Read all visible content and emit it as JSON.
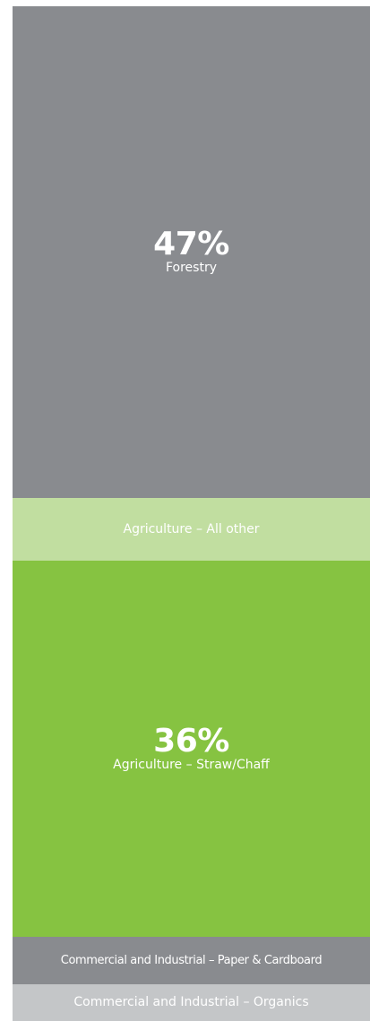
{
  "chart_data": {
    "type": "bar",
    "layout": "stacked-vertical-single-column",
    "segments": [
      {
        "label": "Forestry",
        "value_label": "47%",
        "value": 47,
        "color": "#898b8f"
      },
      {
        "label": "Agriculture – All other",
        "value_label": "",
        "value": 6,
        "color": "#c1dea0"
      },
      {
        "label": "Agriculture – Straw/Chaff",
        "value_label": "36%",
        "value": 36,
        "color": "#86c341"
      },
      {
        "label": "Commercial and Industrial – Paper & Cardboard",
        "value_label": "",
        "value": 4.5,
        "color": "#898b8f"
      },
      {
        "label": "Commercial and Industrial – Organics",
        "value_label": "",
        "value": 3.5,
        "color": "#c4c6c8"
      }
    ]
  }
}
